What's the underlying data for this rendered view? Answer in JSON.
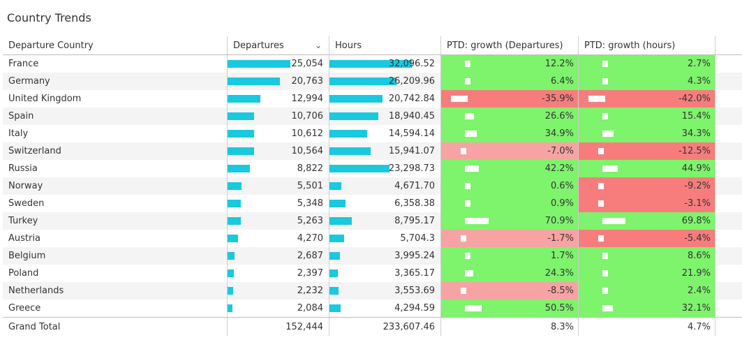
{
  "title": "Country Trends",
  "columns": {
    "country": "Departure Country",
    "departures": "Departures",
    "hours": "Hours",
    "growth_departures": "PTD: growth (Departures)",
    "growth_hours": "PTD: growth (hours)"
  },
  "sort_icon": "chevron-down-icon",
  "colors": {
    "bar": "#18c9df",
    "positive": "#7ef36c",
    "negative_light": "#f7a3a3",
    "negative_strong": "#f77d7d",
    "growth_marker": "#ffffff"
  },
  "rows": [
    {
      "country": "France",
      "departures": "25,054",
      "hours": "32,096.52",
      "g_dep": "12.2%",
      "g_hrs": "2.7%"
    },
    {
      "country": "Germany",
      "departures": "20,763",
      "hours": "26,209.96",
      "g_dep": "6.4%",
      "g_hrs": "4.3%"
    },
    {
      "country": "United Kingdom",
      "departures": "12,994",
      "hours": "20,742.84",
      "g_dep": "-35.9%",
      "g_hrs": "-42.0%"
    },
    {
      "country": "Spain",
      "departures": "10,706",
      "hours": "18,940.45",
      "g_dep": "26.6%",
      "g_hrs": "15.4%"
    },
    {
      "country": "Italy",
      "departures": "10,612",
      "hours": "14,594.14",
      "g_dep": "34.9%",
      "g_hrs": "34.3%"
    },
    {
      "country": "Switzerland",
      "departures": "10,564",
      "hours": "15,941.07",
      "g_dep": "-7.0%",
      "g_hrs": "-12.5%"
    },
    {
      "country": "Russia",
      "departures": "8,822",
      "hours": "23,298.73",
      "g_dep": "42.2%",
      "g_hrs": "44.9%"
    },
    {
      "country": "Norway",
      "departures": "5,501",
      "hours": "4,671.70",
      "g_dep": "0.6%",
      "g_hrs": "-9.2%"
    },
    {
      "country": "Sweden",
      "departures": "5,348",
      "hours": "6,358.38",
      "g_dep": "0.9%",
      "g_hrs": "-3.1%"
    },
    {
      "country": "Turkey",
      "departures": "5,263",
      "hours": "8,795.17",
      "g_dep": "70.9%",
      "g_hrs": "69.8%"
    },
    {
      "country": "Austria",
      "departures": "4,270",
      "hours": "5,704.3",
      "g_dep": "-1.7%",
      "g_hrs": "-5.4%"
    },
    {
      "country": "Belgium",
      "departures": "2,687",
      "hours": "3,995.24",
      "g_dep": "1.7%",
      "g_hrs": "8.6%"
    },
    {
      "country": "Poland",
      "departures": "2,397",
      "hours": "3,365.17",
      "g_dep": "24.3%",
      "g_hrs": "21.9%"
    },
    {
      "country": "Netherlands",
      "departures": "2,232",
      "hours": "3,553.69",
      "g_dep": "-8.5%",
      "g_hrs": "2.4%"
    },
    {
      "country": "Greece",
      "departures": "2,084",
      "hours": "4,294.59",
      "g_dep": "50.5%",
      "g_hrs": "32.1%"
    }
  ],
  "total": {
    "label": "Grand Total",
    "departures": "152,444",
    "hours": "233,607.46",
    "g_dep": "8.3%",
    "g_hrs": "4.7%"
  }
}
